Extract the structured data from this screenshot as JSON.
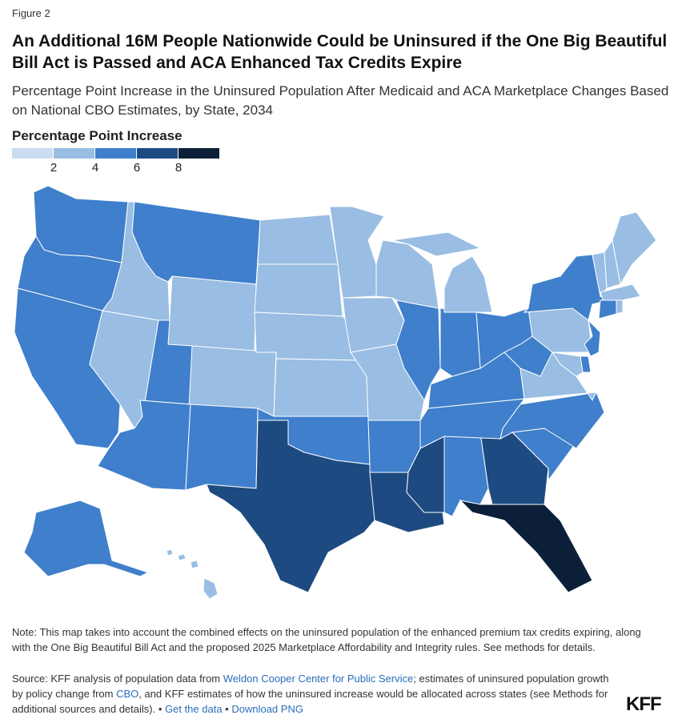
{
  "figure_label": "Figure 2",
  "title": "An Additional 16M People Nationwide Could be Uninsured if the One Big Beautiful Bill Act is Passed and ACA Enhanced Tax Credits Expire",
  "subtitle": "Percentage Point Increase in the Uninsured Population After Medicaid and ACA Marketplace Changes Based on National CBO Estimates, by State, 2034",
  "legend": {
    "title": "Percentage Point Increase",
    "ticks": [
      "2",
      "4",
      "6",
      "8"
    ],
    "colors": [
      "#cadcf0",
      "#99bde3",
      "#3f7fcb",
      "#1d4a80",
      "#0b1f38"
    ]
  },
  "chart_data": {
    "type": "choropleth",
    "unit": "percentage points",
    "bins": [
      "<2",
      "2-4",
      "4-6",
      "6-8",
      "8+"
    ],
    "states": {
      "WA": "4-6",
      "OR": "4-6",
      "CA": "4-6",
      "NV": "2-4",
      "ID": "2-4",
      "MT": "4-6",
      "WY": "2-4",
      "UT": "4-6",
      "CO": "2-4",
      "AZ": "4-6",
      "NM": "4-6",
      "ND": "2-4",
      "SD": "2-4",
      "NE": "2-4",
      "KS": "2-4",
      "OK": "4-6",
      "TX": "6-8",
      "MN": "2-4",
      "IA": "2-4",
      "MO": "2-4",
      "AR": "4-6",
      "LA": "6-8",
      "MS": "6-8",
      "AL": "4-6",
      "GA": "6-8",
      "FL": "8+",
      "SC": "4-6",
      "NC": "4-6",
      "TN": "4-6",
      "KY": "4-6",
      "VA": "2-4",
      "WV": "4-6",
      "OH": "4-6",
      "IN": "4-6",
      "IL": "4-6",
      "WI": "2-4",
      "MI": "2-4",
      "PA": "2-4",
      "NY": "4-6",
      "NJ": "4-6",
      "DE": "4-6",
      "MD": "2-4",
      "VT": "2-4",
      "NH": "2-4",
      "ME": "2-4",
      "MA": "2-4",
      "CT": "4-6",
      "RI": "2-4",
      "AK": "4-6",
      "HI": "2-4"
    }
  },
  "note": "Note: This map takes into account the combined effects on the uninsured population of the enhanced premium tax credits expiring, along with the One Big Beautiful Bill Act and the proposed 2025 Marketplace Affordability and Integrity rules. See methods for details.",
  "source": {
    "t1": "Source: KFF analysis of population data from ",
    "link1": "Weldon Cooper Center for Public Service",
    "t2": "; estimates of uninsured population growth by policy change from ",
    "link2": "CBO",
    "t3": ", and KFF estimates of how the uninsured increase would be allocated across states (see Methods for additional sources and details). • ",
    "link3": "Get the data",
    "t4": " • ",
    "link4": "Download PNG"
  },
  "logo": "KFF"
}
